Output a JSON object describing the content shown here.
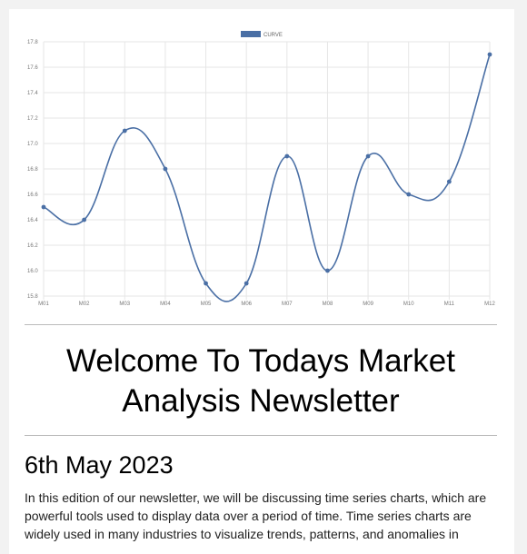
{
  "chart_data": {
    "type": "line",
    "categories": [
      "M01",
      "M02",
      "M03",
      "M04",
      "M05",
      "M06",
      "M07",
      "M08",
      "M09",
      "M10",
      "M11",
      "M12"
    ],
    "series": [
      {
        "name": "CURVE",
        "values": [
          16.5,
          16.4,
          17.1,
          16.8,
          15.9,
          15.9,
          16.9,
          16.0,
          16.9,
          16.6,
          16.7,
          17.7
        ]
      }
    ],
    "ylim": [
      15.8,
      17.8
    ],
    "yticks": [
      "15.8",
      "16.0",
      "16.2",
      "16.4",
      "16.6",
      "16.8",
      "17.0",
      "17.2",
      "17.4",
      "17.6",
      "17.8"
    ],
    "grid": true,
    "legend_position": "top-center",
    "colors": {
      "line": "#4a6fa5",
      "legend_box": "#4a6fa5",
      "grid": "#e6e6e6"
    }
  },
  "newsletter": {
    "title": "Welcome To Todays Market Analysis Newsletter",
    "date": "6th May 2023",
    "intro": "In this edition of our newsletter, we will be discussing time series charts, which are powerful tools used to display data over a period of time. Time series charts are widely used in many industries to visualize trends, patterns, and anomalies in"
  }
}
